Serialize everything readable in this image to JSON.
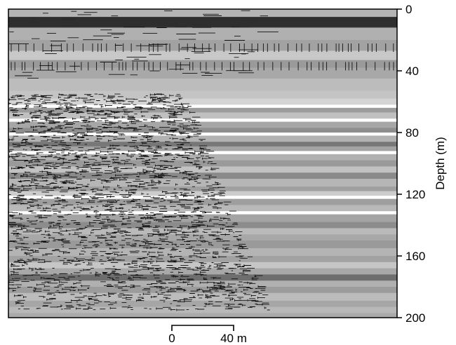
{
  "figure": {
    "y_axis": {
      "label": "Depth (m)",
      "range": [
        0,
        200
      ],
      "side": "right",
      "ticks": [
        0,
        40,
        80,
        120,
        160,
        200
      ],
      "tick_labels": [
        "0",
        "40",
        "80",
        "120",
        "160",
        "200"
      ]
    },
    "scale_bar": {
      "start_label": "0",
      "end_label": "40 m",
      "length_m": 40
    },
    "layers": [
      {
        "top": 0,
        "bottom": 5,
        "tone": "#b4b4b4"
      },
      {
        "top": 5,
        "bottom": 12,
        "tone": "#3a3a3a"
      },
      {
        "top": 12,
        "bottom": 20,
        "tone": "#b0b0b0"
      },
      {
        "top": 20,
        "bottom": 27,
        "tone": "#a2a2a2"
      },
      {
        "top": 27,
        "bottom": 33,
        "tone": "#c8c8c8"
      },
      {
        "top": 33,
        "bottom": 38,
        "tone": "#9a9a9a"
      },
      {
        "top": 38,
        "bottom": 45,
        "tone": "#a8a8a8"
      },
      {
        "top": 45,
        "bottom": 53,
        "tone": "#bcbcbc"
      },
      {
        "top": 53,
        "bottom": 58,
        "tone": "#c4c4c4"
      },
      {
        "top": 58,
        "bottom": 62,
        "tone": "#d4d4d4"
      },
      {
        "top": 62,
        "bottom": 64,
        "tone": "#ffffff"
      },
      {
        "top": 64,
        "bottom": 67,
        "tone": "#9c9c9c"
      },
      {
        "top": 67,
        "bottom": 71,
        "tone": "#c0c0c0"
      },
      {
        "top": 71,
        "bottom": 73,
        "tone": "#ffffff"
      },
      {
        "top": 73,
        "bottom": 77,
        "tone": "#a6a6a6"
      },
      {
        "top": 77,
        "bottom": 80,
        "tone": "#8e8e8e"
      },
      {
        "top": 80,
        "bottom": 82,
        "tone": "#ffffff"
      },
      {
        "top": 82,
        "bottom": 86,
        "tone": "#b2b2b2"
      },
      {
        "top": 86,
        "bottom": 89,
        "tone": "#777777"
      },
      {
        "top": 89,
        "bottom": 92,
        "tone": "#a4a4a4"
      },
      {
        "top": 92,
        "bottom": 94,
        "tone": "#ffffff"
      },
      {
        "top": 94,
        "bottom": 98,
        "tone": "#b0b0b0"
      },
      {
        "top": 98,
        "bottom": 102,
        "tone": "#9a9a9a"
      },
      {
        "top": 102,
        "bottom": 106,
        "tone": "#c2c2c2"
      },
      {
        "top": 106,
        "bottom": 110,
        "tone": "#8a8a8a"
      },
      {
        "top": 110,
        "bottom": 115,
        "tone": "#b6b6b6"
      },
      {
        "top": 115,
        "bottom": 118,
        "tone": "#a0a0a0"
      },
      {
        "top": 118,
        "bottom": 121,
        "tone": "#cccccc"
      },
      {
        "top": 121,
        "bottom": 123,
        "tone": "#ffffff"
      },
      {
        "top": 123,
        "bottom": 127,
        "tone": "#9e9e9e"
      },
      {
        "top": 127,
        "bottom": 131,
        "tone": "#b8b8b8"
      },
      {
        "top": 131,
        "bottom": 133,
        "tone": "#ffffff"
      },
      {
        "top": 133,
        "bottom": 138,
        "tone": "#a4a4a4"
      },
      {
        "top": 138,
        "bottom": 142,
        "tone": "#8c8c8c"
      },
      {
        "top": 142,
        "bottom": 146,
        "tone": "#bababa"
      },
      {
        "top": 146,
        "bottom": 150,
        "tone": "#a8a8a8"
      },
      {
        "top": 150,
        "bottom": 155,
        "tone": "#9a9a9a"
      },
      {
        "top": 155,
        "bottom": 160,
        "tone": "#b4b4b4"
      },
      {
        "top": 160,
        "bottom": 164,
        "tone": "#a2a2a2"
      },
      {
        "top": 164,
        "bottom": 168,
        "tone": "#c6c6c6"
      },
      {
        "top": 168,
        "bottom": 172,
        "tone": "#a8a8a8"
      },
      {
        "top": 172,
        "bottom": 176,
        "tone": "#6e6e6e"
      },
      {
        "top": 176,
        "bottom": 180,
        "tone": "#b0b0b0"
      },
      {
        "top": 180,
        "bottom": 184,
        "tone": "#9c9c9c"
      },
      {
        "top": 184,
        "bottom": 189,
        "tone": "#bcbcbc"
      },
      {
        "top": 189,
        "bottom": 193,
        "tone": "#a6a6a6"
      },
      {
        "top": 193,
        "bottom": 197,
        "tone": "#b8b8b8"
      },
      {
        "top": 197,
        "bottom": 200,
        "tone": "#aaaaaa"
      }
    ]
  }
}
